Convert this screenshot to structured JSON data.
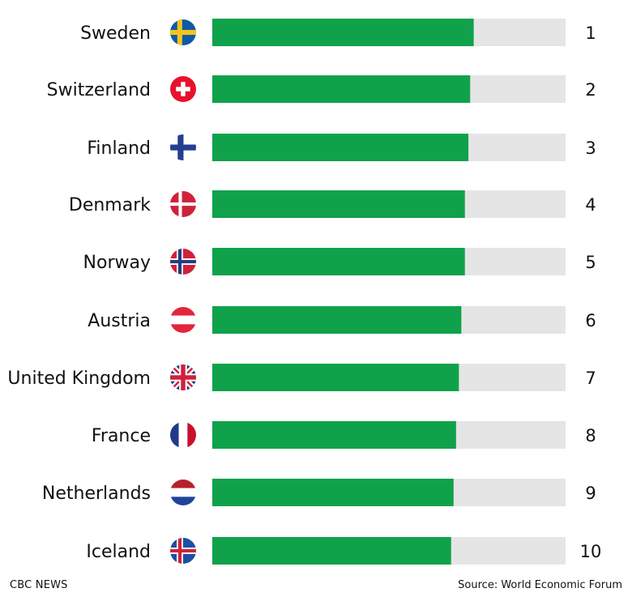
{
  "chart_data": {
    "type": "bar",
    "orientation": "horizontal",
    "categories": [
      "Sweden",
      "Switzerland",
      "Finland",
      "Denmark",
      "Norway",
      "Austria",
      "United Kingdom",
      "France",
      "Netherlands",
      "Iceland"
    ],
    "values": [
      0.74,
      0.73,
      0.725,
      0.715,
      0.715,
      0.705,
      0.698,
      0.69,
      0.683,
      0.676
    ],
    "value_labels": [
      "1",
      "2",
      "3",
      "4",
      "5",
      "6",
      "7",
      "8",
      "9",
      "10"
    ],
    "flag_icons": [
      "flag-sweden-icon",
      "flag-switzerland-icon",
      "flag-finland-icon",
      "flag-denmark-icon",
      "flag-norway-icon",
      "flag-austria-icon",
      "flag-united-kingdom-icon",
      "flag-france-icon",
      "flag-netherlands-icon",
      "flag-iceland-icon"
    ],
    "xlim": [
      0,
      1
    ],
    "grid": false,
    "bar_color": "#0fa24b",
    "track_color": "#e5e5e5",
    "title": "",
    "xlabel": "",
    "ylabel": ""
  },
  "footer": {
    "left": "CBC NEWS",
    "right": "Source: World Economic Forum"
  }
}
